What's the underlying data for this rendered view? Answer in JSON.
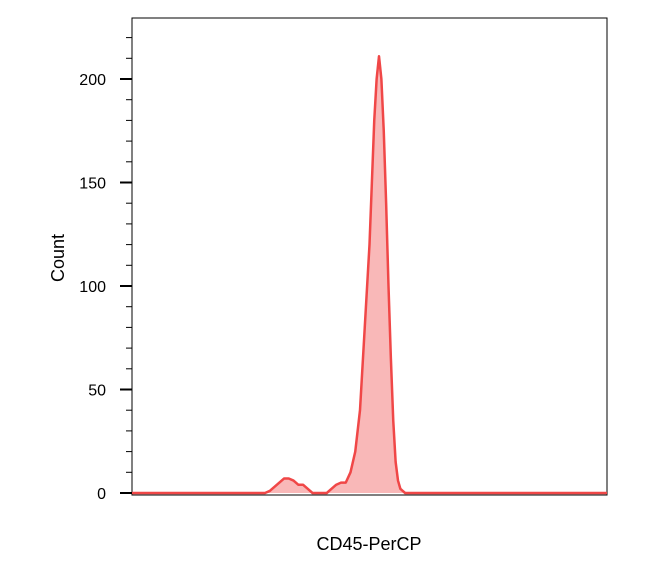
{
  "chart_data": {
    "type": "area",
    "title": "",
    "xlabel": "CD45-PerCP",
    "ylabel": "Count",
    "ylim": [
      0,
      230
    ],
    "yticks": [
      0,
      50,
      100,
      150,
      200
    ],
    "y_minor_step": 10,
    "xlim": [
      0,
      1000
    ],
    "x_ticks_shown": false,
    "grid": false,
    "legend": "none",
    "series": [
      {
        "fill_color": "#f9b8b8",
        "line_color": "#f04747",
        "x": [
          0,
          280,
          290,
          300,
          310,
          320,
          330,
          340,
          350,
          360,
          370,
          380,
          390,
          400,
          410,
          420,
          430,
          440,
          450,
          460,
          470,
          480,
          490,
          500,
          505,
          510,
          515,
          520,
          525,
          530,
          535,
          540,
          545,
          550,
          555,
          560,
          565,
          570,
          575,
          580,
          585,
          590,
          595,
          600,
          610,
          1000
        ],
        "y": [
          0,
          0,
          1,
          3,
          5,
          7,
          7,
          6,
          4,
          4,
          2,
          0,
          0,
          0,
          0,
          2,
          4,
          5,
          5,
          10,
          20,
          40,
          80,
          120,
          150,
          180,
          200,
          211,
          200,
          175,
          140,
          100,
          65,
          35,
          15,
          6,
          2,
          1,
          0,
          0,
          0,
          0,
          0,
          0,
          0,
          0
        ]
      }
    ]
  }
}
